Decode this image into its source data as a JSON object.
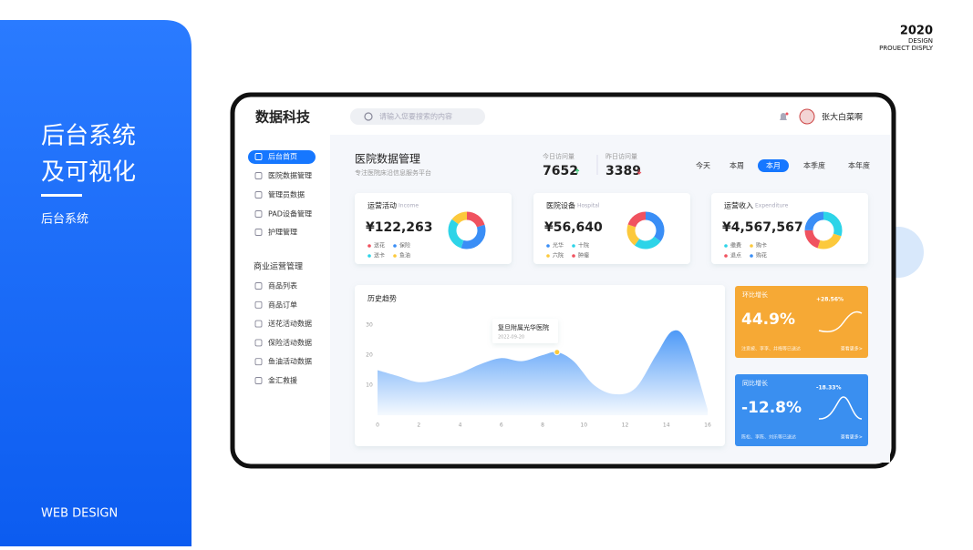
{
  "left_panel": {
    "title_lines": [
      "后台系统",
      "及可视化"
    ],
    "subtitle": "后台系统",
    "footer": "WEB DESIGN"
  },
  "corner": {
    "year": "2020",
    "line1": "DESIGN",
    "line2": "PROUECT DISPLY"
  },
  "app": {
    "logo": "数据科技",
    "search_placeholder": "请输入您要搜索的内容",
    "user": "张大白菜啊"
  },
  "sidebar": {
    "items": [
      "后台首页",
      "医院数据管理",
      "管理员数据",
      "PAD设备管理",
      "护理管理"
    ],
    "active": 0,
    "section": "商业运营管理",
    "section_items": [
      "商品列表",
      "商品订单",
      "送花活动数据",
      "保险活动数据",
      "鱼油活动数据",
      "金汇救援"
    ]
  },
  "header": {
    "title": "医院数据管理",
    "subtitle": "专注医院床沿信息服务平台",
    "today_label": "今日访问量",
    "today_value": "7652",
    "yesterday_label": "昨日访问量",
    "yesterday_value": "3389",
    "periods": [
      "今天",
      "本周",
      "本月",
      "本季度",
      "本年度"
    ],
    "active_period": 2
  },
  "cards": [
    {
      "title": "运营活动",
      "subtitle": "Income",
      "value": "¥122,263",
      "segments": [
        {
          "name": "送花",
          "color": "#f0525f",
          "value": 20
        },
        {
          "name": "保险",
          "color": "#3a8ef6",
          "value": 35
        },
        {
          "name": "送卡",
          "color": "#2dd4e8",
          "value": 30
        },
        {
          "name": "鱼油",
          "color": "#fcc93c",
          "value": 15
        }
      ]
    },
    {
      "title": "医院设备",
      "subtitle": "Hospital",
      "value": "¥56,640",
      "segments": [
        {
          "name": "光华",
          "color": "#3a8ef6",
          "value": 35
        },
        {
          "name": "十院",
          "color": "#2dd4e8",
          "value": 25
        },
        {
          "name": "六院",
          "color": "#fcc93c",
          "value": 20
        },
        {
          "name": "肿瘤",
          "color": "#f0525f",
          "value": 20
        }
      ]
    },
    {
      "title": "运营收入",
      "subtitle": "Expenditure",
      "value": "¥4,567,567",
      "segments": [
        {
          "name": "缴费",
          "color": "#2dd4e8",
          "value": 30
        },
        {
          "name": "购卡",
          "color": "#fcc93c",
          "value": 25
        },
        {
          "name": "退点",
          "color": "#f0525f",
          "value": 20
        },
        {
          "name": "购花",
          "color": "#3a8ef6",
          "value": 25
        }
      ]
    }
  ],
  "chart_data": {
    "type": "area",
    "title": "历史趋势",
    "color": "#3a8ef6",
    "x": [
      0,
      1,
      2,
      3,
      4,
      5,
      6,
      7,
      8,
      8.7,
      9.5,
      10.5,
      11.5,
      12.5,
      13.5,
      14.3,
      15,
      16
    ],
    "values": [
      15,
      13,
      11,
      12,
      14,
      17,
      19,
      18,
      20,
      21,
      18,
      10,
      7,
      9,
      20,
      28,
      24,
      2
    ],
    "xlim": [
      0,
      16
    ],
    "xticks": [
      0,
      2,
      4,
      6,
      8,
      10,
      12,
      14,
      16
    ],
    "ylim": [
      0,
      35
    ],
    "yticks": [
      10,
      20,
      30
    ],
    "tooltip": {
      "index": 9,
      "label": "复旦附属光华医院",
      "date": "2022-09-20"
    }
  },
  "growth": [
    {
      "title": "环比增长",
      "badge": "+28.56%",
      "value": "44.9%",
      "note": "注意被、李李、井梅等已送达",
      "link": "查看更多>",
      "color": "#f6a935"
    },
    {
      "title": "同比增长",
      "badge": "-18.33%",
      "value": "-12.8%",
      "note": "陈松、李陈、刘乐等已送达",
      "link": "查看更多>",
      "color": "#3a8ff0"
    }
  ]
}
